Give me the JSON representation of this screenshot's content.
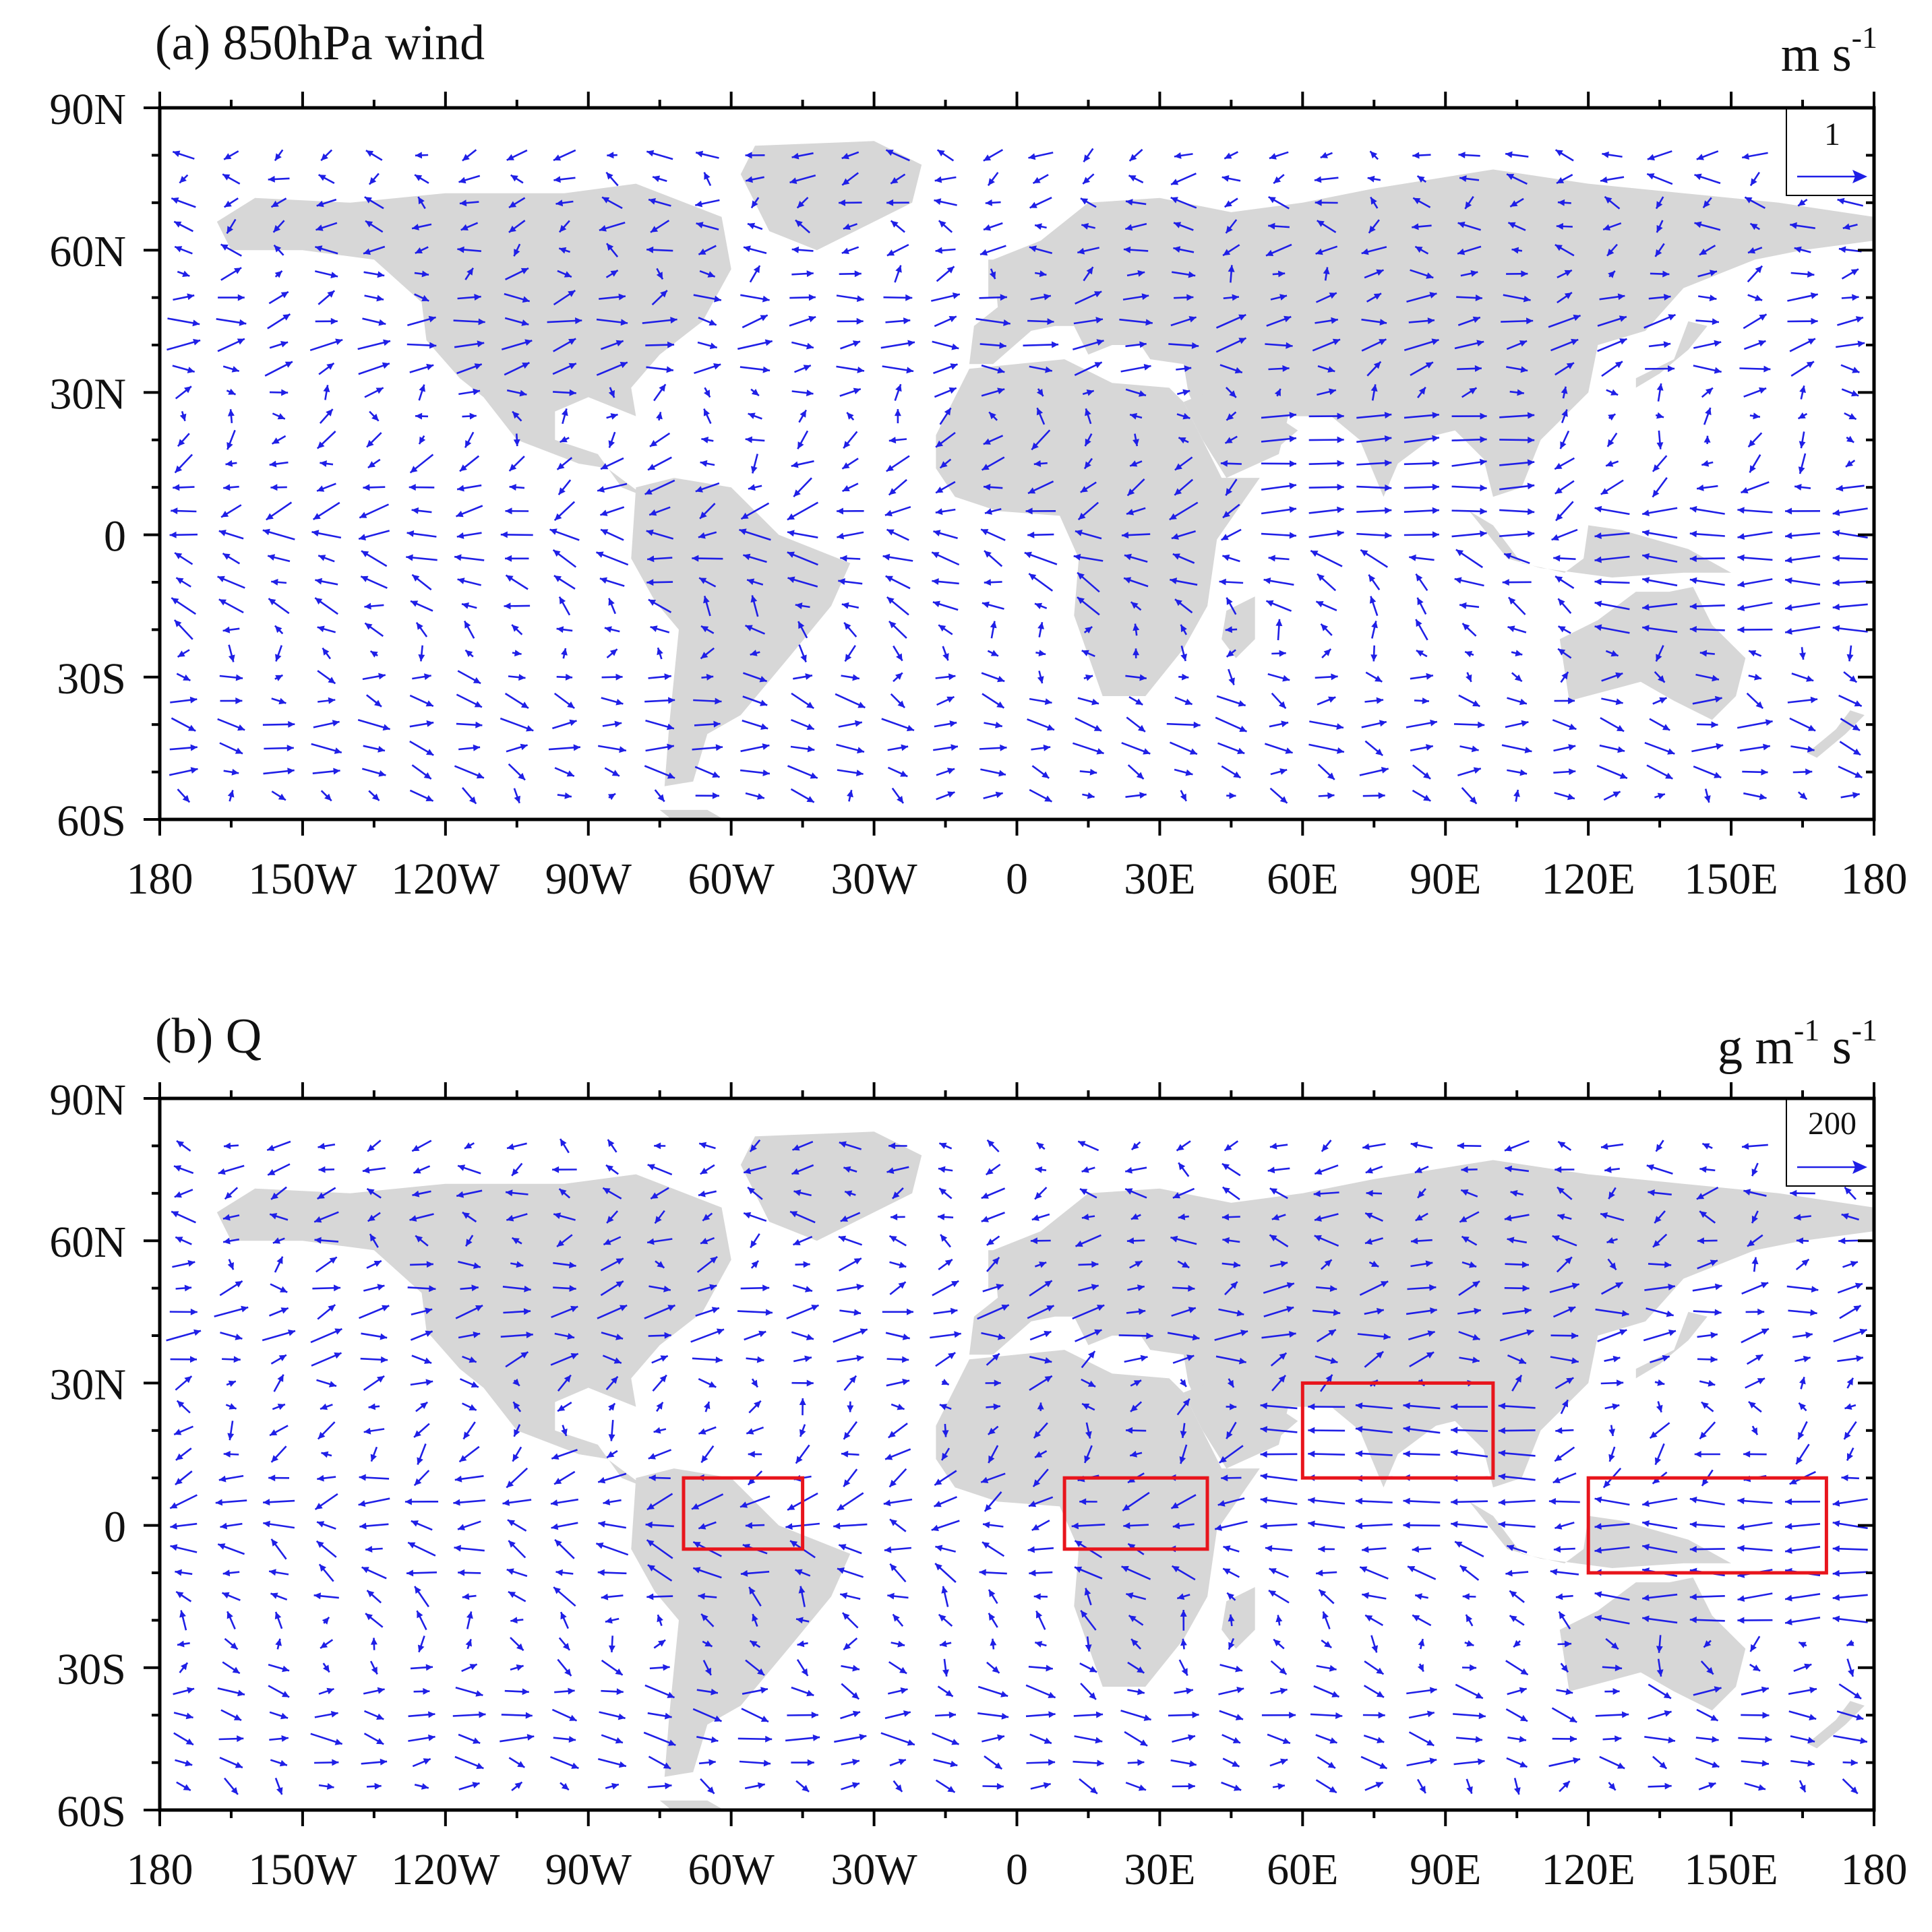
{
  "panels": [
    {
      "id": "a",
      "title": "(a) 850hPa wind",
      "units": {
        "base": "m s",
        "exp": "-1",
        "parts": [
          {
            "t": "m s",
            "sup": "-1"
          }
        ]
      },
      "reference_vector": {
        "label": "1"
      },
      "boxes": []
    },
    {
      "id": "b",
      "title": "(b) Q",
      "units": {
        "parts": [
          {
            "t": "g m",
            "sup": "-1"
          },
          {
            "t": " s",
            "sup": "-1"
          }
        ]
      },
      "reference_vector": {
        "label": "200"
      },
      "boxes": [
        {
          "lon": [
            -70,
            -45
          ],
          "lat": [
            -5,
            10
          ]
        },
        {
          "lon": [
            10,
            40
          ],
          "lat": [
            -5,
            10
          ]
        },
        {
          "lon": [
            60,
            100
          ],
          "lat": [
            10,
            30
          ]
        },
        {
          "lon": [
            120,
            170
          ],
          "lat": [
            -10,
            10
          ]
        }
      ]
    }
  ],
  "axes": {
    "lon_range": [
      -180,
      180
    ],
    "lat_range": [
      -60,
      90
    ],
    "x_ticks": [
      {
        "v": -180,
        "label": "180"
      },
      {
        "v": -150,
        "label": "150W"
      },
      {
        "v": -120,
        "label": "120W"
      },
      {
        "v": -90,
        "label": "90W"
      },
      {
        "v": -60,
        "label": "60W"
      },
      {
        "v": -30,
        "label": "30W"
      },
      {
        "v": 0,
        "label": "0"
      },
      {
        "v": 30,
        "label": "30E"
      },
      {
        "v": 60,
        "label": "60E"
      },
      {
        "v": 90,
        "label": "90E"
      },
      {
        "v": 120,
        "label": "120E"
      },
      {
        "v": 150,
        "label": "150E"
      },
      {
        "v": 180,
        "label": "180"
      }
    ],
    "y_ticks": [
      {
        "v": 90,
        "label": "90N"
      },
      {
        "v": 60,
        "label": "60N"
      },
      {
        "v": 30,
        "label": "30N"
      },
      {
        "v": 0,
        "label": "0"
      },
      {
        "v": -30,
        "label": "30S"
      },
      {
        "v": -60,
        "label": "60S"
      }
    ]
  },
  "colors": {
    "vector": "#1f1fe6",
    "land": "#d7d7d7",
    "box": "#e8151c",
    "frame": "#000000"
  }
}
